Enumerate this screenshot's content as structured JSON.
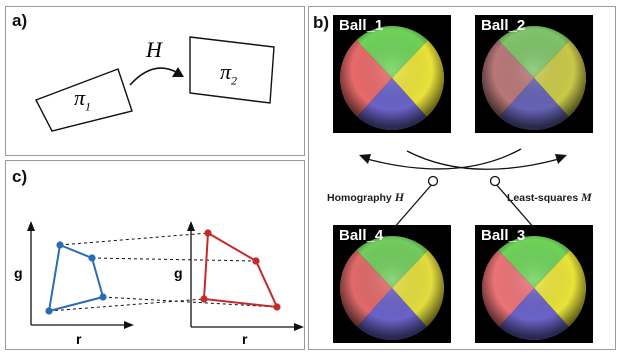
{
  "panel_a": {
    "label": "a)",
    "plane_1": "π",
    "plane_1_sub": "1",
    "plane_2": "π",
    "plane_2_sub": "2",
    "transform": "H"
  },
  "panel_b": {
    "label": "b)",
    "balls": [
      "Ball_1",
      "Ball_2",
      "Ball_4",
      "Ball_3"
    ],
    "caption_left": "Homography",
    "caption_left_math": "H",
    "caption_right": "Least-squares",
    "caption_right_math": "M",
    "colors": {
      "green": "#6fd25a",
      "yellow": "#e8e23a",
      "blue": "#6a63c8",
      "red": "#e86a6a",
      "red_muted": "#b87878"
    }
  },
  "panel_c": {
    "label": "c)",
    "left_axis_y": "g",
    "left_axis_x": "r",
    "right_axis_y": "g",
    "right_axis_x": "r",
    "colors": {
      "left_shape": "#2a6bb6",
      "right_shape": "#c42a2a"
    }
  }
}
